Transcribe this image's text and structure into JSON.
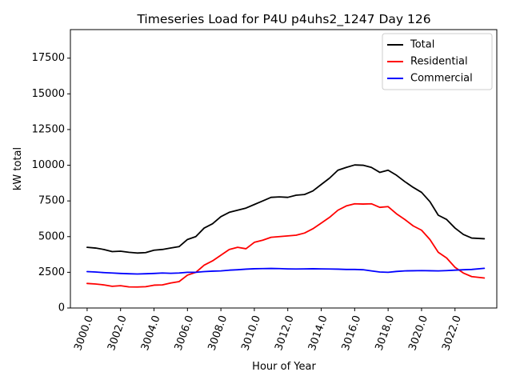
{
  "chart_data": {
    "type": "line",
    "title": "Timeseries Load for P4U p4uhs2_1247  Day 126",
    "xlabel": "Hour of Year",
    "ylabel": "kW total",
    "xlim": [
      2999.0,
      3024.5
    ],
    "ylim": [
      0,
      19500
    ],
    "xticks": [
      3000,
      3002,
      3004,
      3006,
      3008,
      3010,
      3012,
      3014,
      3016,
      3018,
      3020,
      3022
    ],
    "xtick_labels": [
      "3000.0",
      "3002.0",
      "3004.0",
      "3006.0",
      "3008.0",
      "3010.0",
      "3012.0",
      "3014.0",
      "3016.0",
      "3018.0",
      "3020.0",
      "3022.0"
    ],
    "yticks": [
      0,
      2500,
      5000,
      7500,
      10000,
      12500,
      15000,
      17500
    ],
    "ytick_labels": [
      "0",
      "2500",
      "5000",
      "7500",
      "10000",
      "12500",
      "15000",
      "17500"
    ],
    "legend_position": "top-right",
    "x": [
      3000.0,
      3000.5,
      3001.0,
      3001.5,
      3002.0,
      3002.5,
      3003.0,
      3003.5,
      3004.0,
      3004.5,
      3005.0,
      3005.5,
      3006.0,
      3006.5,
      3007.0,
      3007.5,
      3008.0,
      3008.5,
      3009.0,
      3009.5,
      3010.0,
      3010.5,
      3011.0,
      3011.5,
      3012.0,
      3012.5,
      3013.0,
      3013.5,
      3014.0,
      3014.5,
      3015.0,
      3015.5,
      3016.0,
      3016.5,
      3017.0,
      3017.5,
      3018.0,
      3018.5,
      3019.0,
      3019.5,
      3020.0,
      3020.5,
      3021.0,
      3021.5,
      3022.0,
      3022.5,
      3023.0,
      3023.75
    ],
    "series": [
      {
        "name": "Total",
        "color": "#000000",
        "values": [
          4250,
          4200,
          4100,
          3950,
          3980,
          3900,
          3850,
          3880,
          4050,
          4100,
          4200,
          4300,
          4800,
          5000,
          5600,
          5900,
          6400,
          6700,
          6850,
          7000,
          7250,
          7500,
          7750,
          7780,
          7750,
          7900,
          7950,
          8200,
          8650,
          9100,
          9650,
          9850,
          10020,
          10000,
          9850,
          9500,
          9650,
          9300,
          8850,
          8450,
          8100,
          7450,
          6500,
          6200,
          5600,
          5150,
          4900,
          4850
        ]
      },
      {
        "name": "Residential",
        "color": "#ff0000",
        "values": [
          1720,
          1680,
          1620,
          1520,
          1560,
          1480,
          1470,
          1490,
          1600,
          1620,
          1750,
          1850,
          2300,
          2500,
          3000,
          3300,
          3700,
          4100,
          4250,
          4150,
          4600,
          4750,
          4950,
          5000,
          5050,
          5100,
          5250,
          5550,
          5950,
          6350,
          6850,
          7150,
          7300,
          7280,
          7300,
          7050,
          7100,
          6600,
          6200,
          5750,
          5450,
          4800,
          3900,
          3500,
          2850,
          2450,
          2200,
          2100
        ]
      },
      {
        "name": "Commercial",
        "color": "#0000ff",
        "values": [
          2550,
          2520,
          2480,
          2450,
          2420,
          2400,
          2380,
          2400,
          2420,
          2450,
          2430,
          2450,
          2500,
          2500,
          2550,
          2580,
          2600,
          2650,
          2680,
          2720,
          2750,
          2760,
          2770,
          2760,
          2740,
          2730,
          2740,
          2750,
          2740,
          2730,
          2720,
          2700,
          2700,
          2680,
          2600,
          2520,
          2500,
          2560,
          2600,
          2610,
          2620,
          2610,
          2600,
          2620,
          2650,
          2680,
          2700,
          2780
        ]
      }
    ]
  }
}
